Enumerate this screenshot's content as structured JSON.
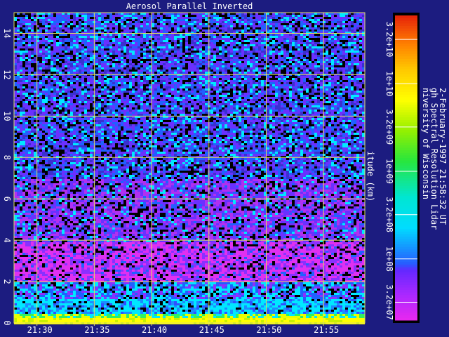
{
  "chart_data": {
    "type": "heatmap",
    "title": "Aerosol Parallel Inverted",
    "ylabel": "itude (km)",
    "xlim_minutes": [
      1288,
      1318.6
    ],
    "ylim": [
      0,
      15
    ],
    "x_ticks": [
      {
        "value": 1290,
        "label": "21:30"
      },
      {
        "value": 1295,
        "label": "21:35"
      },
      {
        "value": 1300,
        "label": "21:40"
      },
      {
        "value": 1305,
        "label": "21:45"
      },
      {
        "value": 1310,
        "label": "21:50"
      },
      {
        "value": 1315,
        "label": "21:55"
      }
    ],
    "y_ticks": [
      {
        "value": 0,
        "label": "0"
      },
      {
        "value": 2,
        "label": "2"
      },
      {
        "value": 4,
        "label": "4"
      },
      {
        "value": 6,
        "label": "6"
      },
      {
        "value": 8,
        "label": "8"
      },
      {
        "value": 10,
        "label": "10"
      },
      {
        "value": 12,
        "label": "12"
      },
      {
        "value": 14,
        "label": "14"
      }
    ],
    "grid": true,
    "colorbar": {
      "scale": "log",
      "range": [
        20000000.0,
        60000000000.0
      ],
      "ticks": [
        {
          "value": 32000000.0,
          "label": "3.2e+07"
        },
        {
          "value": 100000000.0,
          "label": "1e+08"
        },
        {
          "value": 320000000.0,
          "label": "3.2e+08"
        },
        {
          "value": 1000000000.0,
          "label": "1e+09"
        },
        {
          "value": 3200000000.0,
          "label": "3.2e+09"
        },
        {
          "value": 10000000000.0,
          "label": "1e+10"
        },
        {
          "value": 32000000000.0,
          "label": "3.2e+10"
        }
      ]
    },
    "layers": [
      {
        "alt_range": [
          0,
          0.5
        ],
        "dominant": "yellow"
      },
      {
        "alt_range": [
          0.5,
          2
        ],
        "dominant": "cyan"
      },
      {
        "alt_range": [
          2,
          4
        ],
        "dominant": "magenta"
      },
      {
        "alt_range": [
          4,
          15
        ],
        "dominant": "purple/blue noise"
      }
    ]
  },
  "info_lines": [
    "niversity of Wisconsin",
    "gh Spectral Resolution Lidar",
    "2-February-1997 21:58:32 UT"
  ],
  "colors": {
    "background": "#1c1c80",
    "grid": "#e0e060",
    "text": "#ffffff"
  }
}
